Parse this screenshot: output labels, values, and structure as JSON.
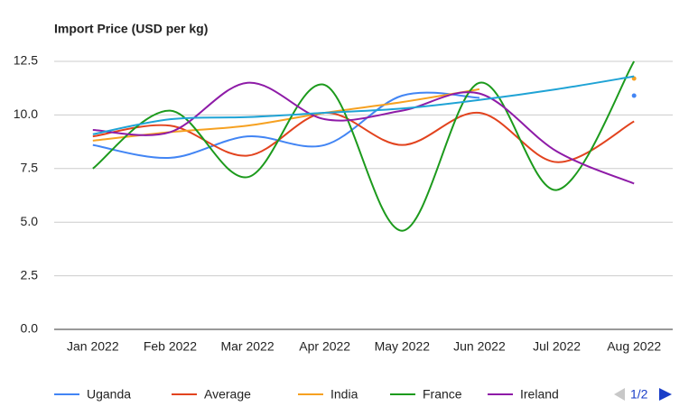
{
  "chart_data": {
    "type": "line",
    "title": "Import Price (USD per kg)",
    "categories": [
      "Jan 2022",
      "Feb 2022",
      "Mar 2022",
      "Apr 2022",
      "May 2022",
      "Jun 2022",
      "Jul 2022",
      "Aug 2022"
    ],
    "series": [
      {
        "name": "Uganda",
        "color": "#4285f4",
        "values": [
          8.6,
          8.0,
          9.0,
          8.6,
          10.9,
          10.8,
          null,
          10.9
        ]
      },
      {
        "name": "Average",
        "color": "#e2431e",
        "values": [
          9.0,
          9.5,
          8.1,
          10.1,
          8.6,
          10.1,
          7.8,
          9.7
        ]
      },
      {
        "name": "India",
        "color": "#f6a121",
        "values": [
          8.8,
          9.2,
          9.5,
          10.1,
          10.6,
          11.2,
          null,
          11.7
        ]
      },
      {
        "name": "France",
        "color": "#1c9a1c",
        "values": [
          7.5,
          10.2,
          7.1,
          11.4,
          4.6,
          11.5,
          6.5,
          12.5
        ]
      },
      {
        "name": "Ireland",
        "color": "#8e1ba7",
        "values": [
          9.3,
          9.2,
          11.5,
          9.8,
          10.2,
          11.0,
          8.3,
          6.8
        ]
      },
      {
        "color": "#1fa3d5",
        "values": [
          9.1,
          9.8,
          9.9,
          10.1,
          10.3,
          10.7,
          11.2,
          11.8
        ]
      }
    ],
    "ylim": [
      0,
      12.5
    ],
    "yticks": [
      {
        "value": 0,
        "label": "0.0"
      },
      {
        "value": 2.5,
        "label": "2.5"
      },
      {
        "value": 5,
        "label": "5.0"
      },
      {
        "value": 7.5,
        "label": "7.5"
      },
      {
        "value": 10,
        "label": "10.0"
      },
      {
        "value": 12.5,
        "label": "12.5"
      }
    ],
    "grid": true,
    "smooth": true,
    "legend": "bottom",
    "legend_page": "1/2"
  }
}
